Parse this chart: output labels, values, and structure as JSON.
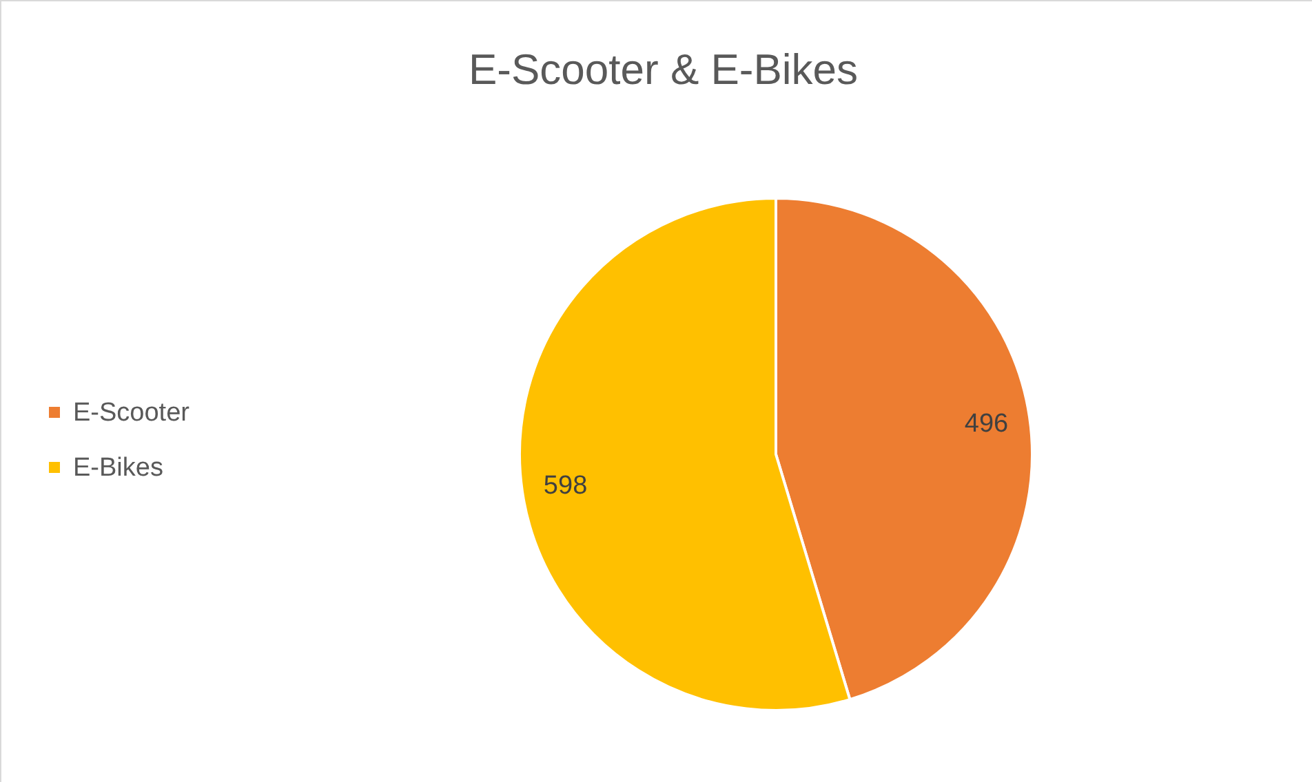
{
  "chart_data": {
    "type": "pie",
    "title": "E-Scooter & E-Bikes",
    "categories": [
      "E-Scooter",
      "E-Bikes"
    ],
    "values": [
      496,
      598
    ],
    "colors": [
      "#ed7d31",
      "#ffc000"
    ],
    "data_labels": true,
    "legend": "left"
  }
}
